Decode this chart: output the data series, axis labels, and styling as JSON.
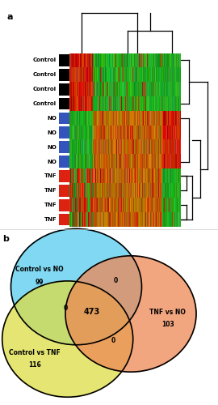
{
  "panel_a_label": "a",
  "panel_b_label": "b",
  "rows": [
    "Control",
    "Control",
    "Control",
    "Control",
    "NO",
    "NO",
    "NO",
    "NO",
    "TNF",
    "TNF",
    "TNF",
    "TNF"
  ],
  "row_colors_black": "#000000",
  "row_colors_blue": "#3355bb",
  "row_colors_red": "#dd2211",
  "venn_circle1_color": "#55ccee",
  "venn_circle2_color": "#dddd44",
  "venn_circle3_color": "#ee8855",
  "venn_label1": "Control vs NO",
  "venn_value1": "99",
  "venn_label2": "Control vs TNF",
  "venn_value2": "116",
  "venn_label3": "TNF vs NO",
  "venn_value3": "103",
  "venn_center": "473",
  "venn_intersect12": "0",
  "venn_intersect13": "0",
  "venn_intersect23": "0",
  "background_color": "#ffffff",
  "green": "#22aa22",
  "red": "#cc2200",
  "orange": "#bb6600"
}
